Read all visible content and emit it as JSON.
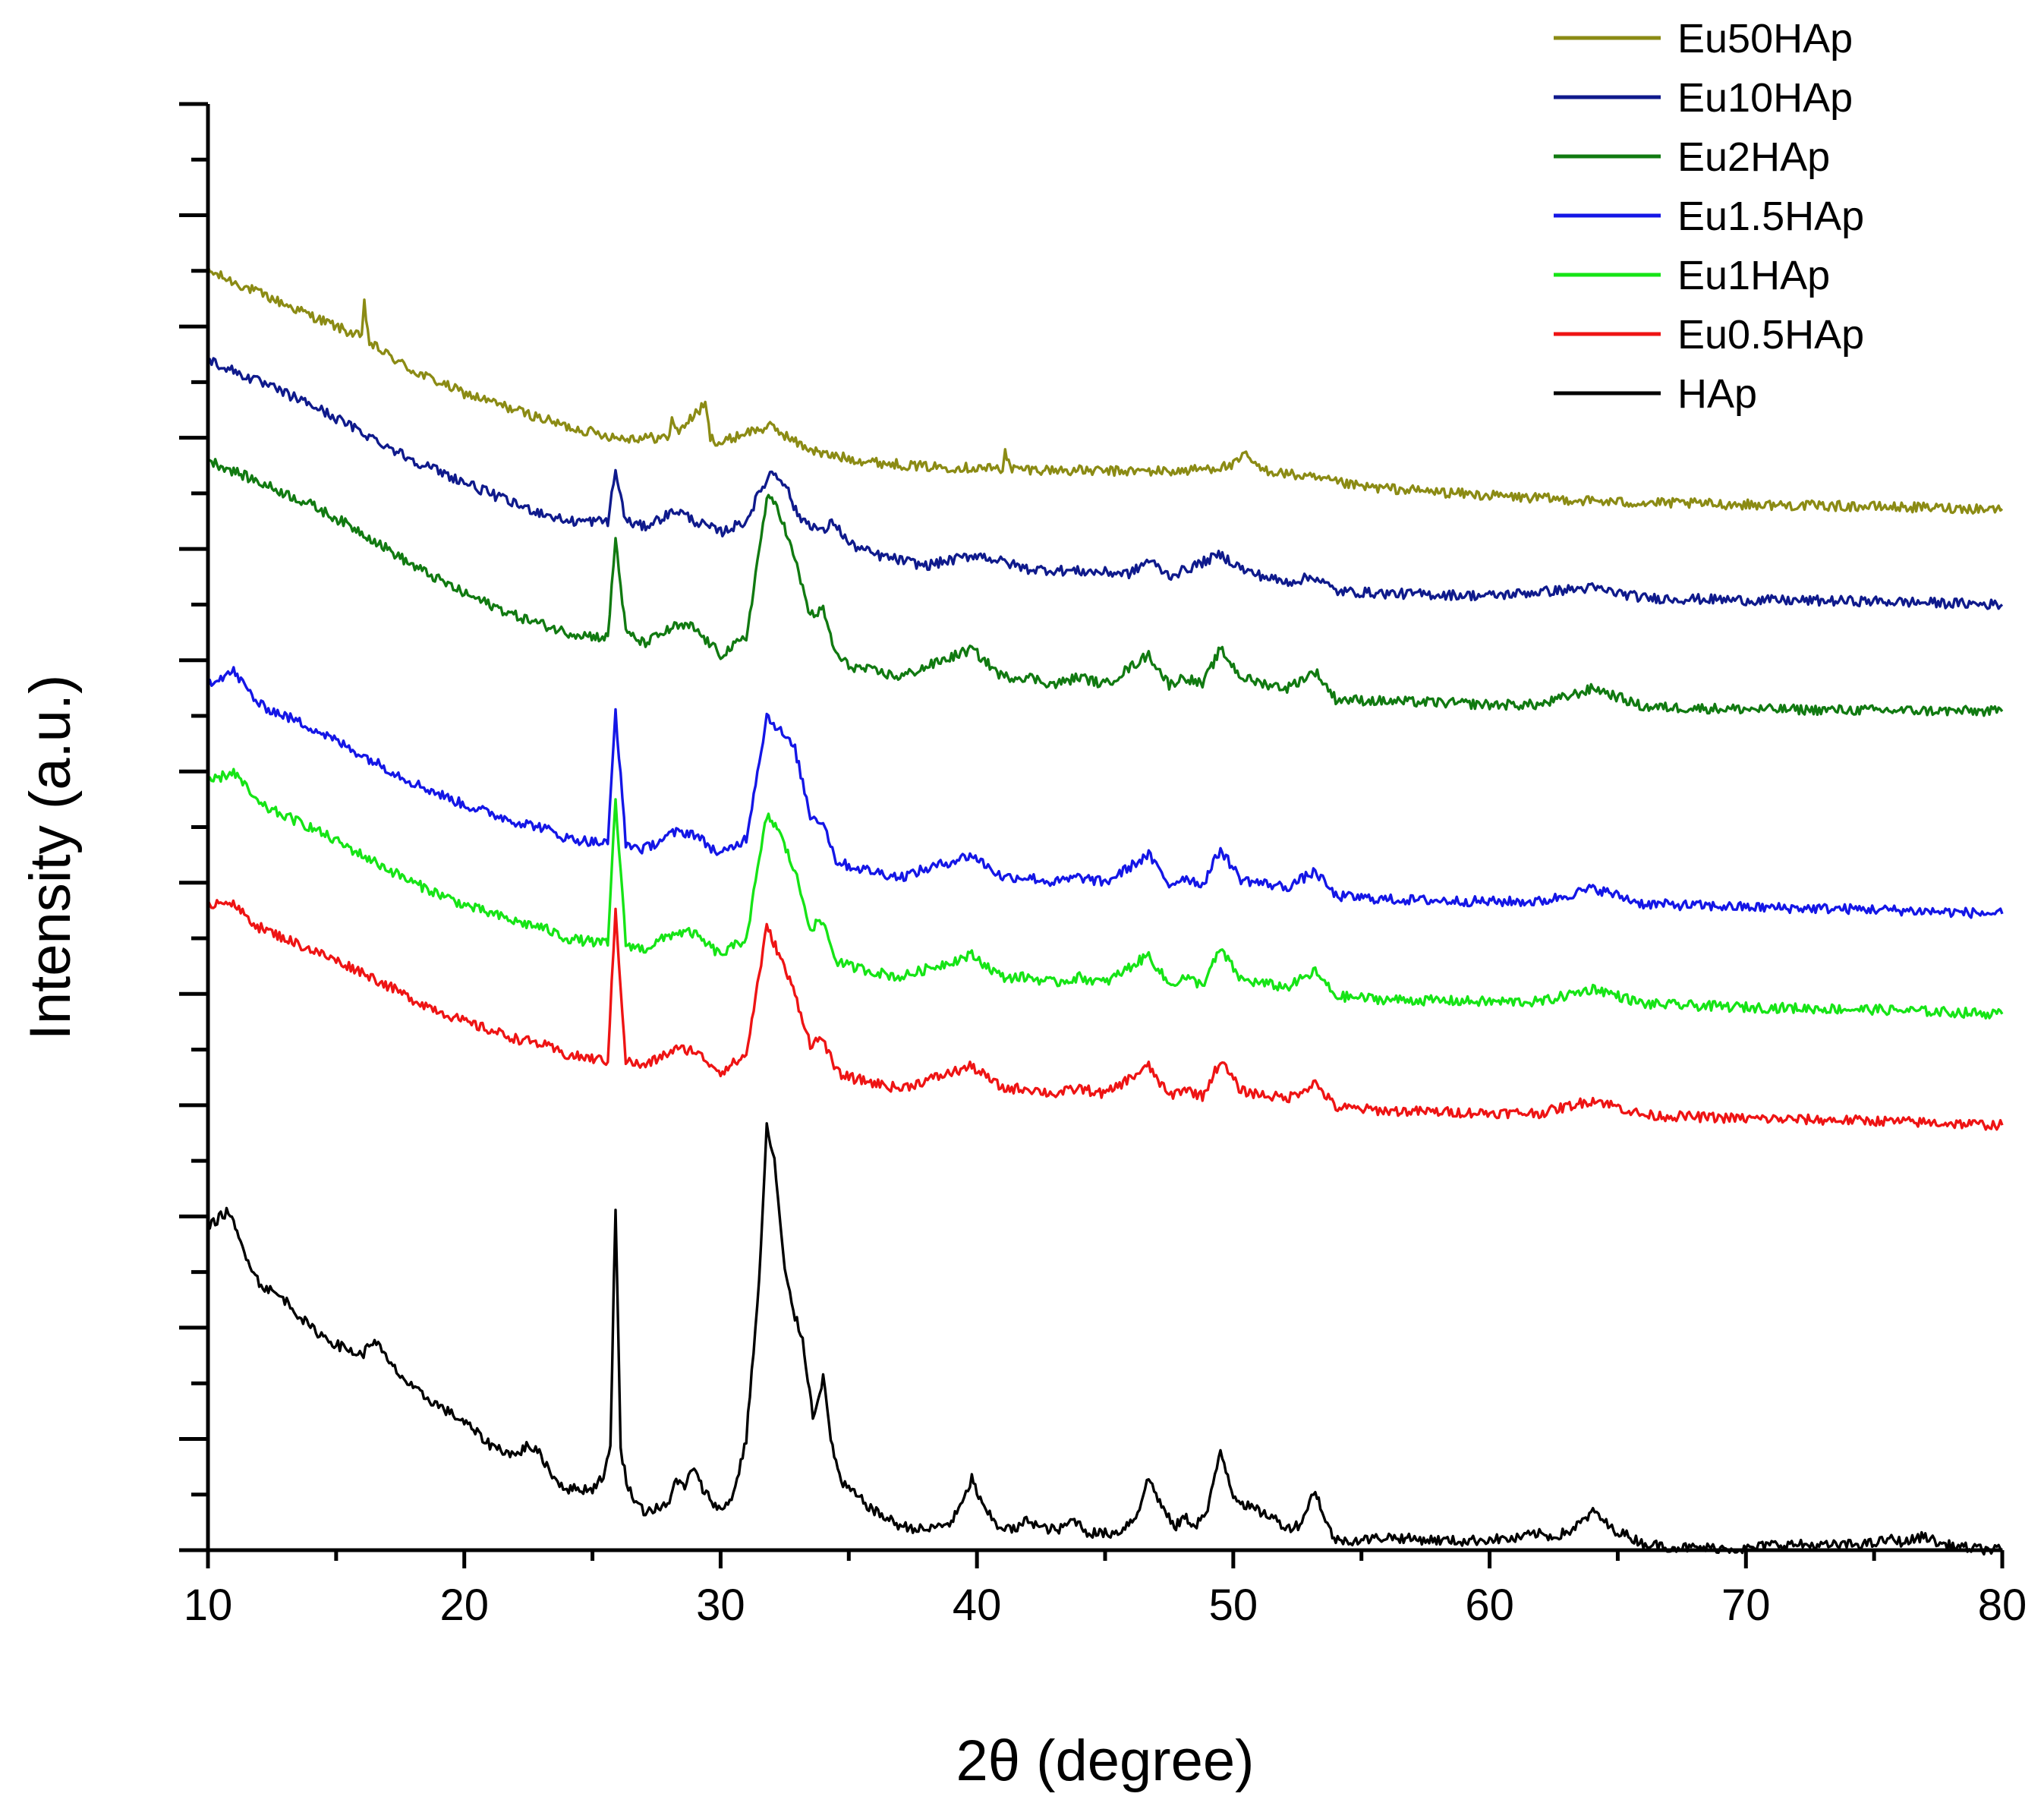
{
  "chart_data": {
    "type": "line",
    "title": "",
    "xlabel": "2θ (degree)",
    "ylabel": "Intensity (a.u.)",
    "xlim": [
      10,
      80
    ],
    "ylim": [
      0,
      130
    ],
    "x_ticks": [
      10,
      20,
      30,
      40,
      50,
      60,
      70,
      80
    ],
    "y_tick_labels_shown": false,
    "grid": false,
    "legend_position": "top-right",
    "peak_positions_2theta": [
      25.9,
      28.1,
      28.9,
      31.8,
      32.2,
      32.9,
      34.0,
      39.8,
      42.0,
      43.8,
      46.7,
      48.1,
      49.5,
      50.5,
      52.1,
      53.2,
      64.1
    ],
    "series": [
      {
        "name": "Eu50HAp",
        "color": "#8b8b14",
        "offset": 112,
        "x": [
          10,
          12,
          14,
          16,
          16.1,
          16.3,
          18,
          20,
          22,
          24,
          26,
          28,
          28.1,
          28.3,
          29.4,
          29.6,
          30,
          31,
          32,
          33,
          34,
          36,
          38,
          40,
          41,
          41.1,
          41.3,
          43,
          45,
          48,
          50,
          50.5,
          51,
          52,
          55,
          60,
          65,
          70,
          75,
          80
        ],
        "y": [
          115,
          113,
          111,
          109,
          112,
          108.5,
          106,
          104,
          102.5,
          101,
          100,
          100,
          102,
          100.5,
          103,
          100,
          99.5,
          100.5,
          101,
          99.5,
          98.5,
          97.8,
          97.4,
          97.3,
          97.2,
          99,
          97.2,
          97.1,
          97.0,
          97.0,
          97.5,
          98.5,
          97.2,
          96.8,
          95.6,
          94.8,
          94.2,
          94.0,
          93.8,
          93.6
        ]
      },
      {
        "name": "Eu10HAp",
        "color": "#0f1a8c",
        "offset": 84,
        "x": [
          10,
          12,
          14,
          16,
          18,
          20,
          22,
          24,
          25.6,
          25.9,
          26.3,
          27,
          28.3,
          29,
          30,
          31,
          31.5,
          32,
          32.5,
          33,
          34,
          34.4,
          35,
          36,
          38,
          40,
          42,
          44,
          46,
          46.7,
          47.5,
          48,
          49.5,
          50.5,
          52,
          53.2,
          54,
          56,
          60,
          64,
          66,
          70,
          75,
          80
        ],
        "y": [
          107,
          105,
          103,
          100.5,
          98,
          96,
          94,
          92.5,
          92.5,
          97,
          92.5,
          92,
          93.5,
          92.5,
          91.5,
          92.5,
          95,
          97,
          96,
          93,
          91.5,
          92.5,
          90.5,
          89.5,
          88.5,
          89.5,
          88.2,
          88,
          87.8,
          89,
          87.6,
          88,
          89.5,
          88,
          87,
          87.5,
          86.2,
          86,
          85.8,
          86.5,
          85.6,
          85.4,
          85.3,
          85
        ]
      },
      {
        "name": "Eu2HAp",
        "color": "#117a11",
        "offset": 64,
        "x": [
          10,
          12,
          14,
          16,
          18,
          20,
          22,
          24,
          25.6,
          25.9,
          26.3,
          27,
          28.2,
          28.9,
          30,
          31,
          31.8,
          32.2,
          32.9,
          33.5,
          34,
          34.5,
          35,
          37,
          39.8,
          41,
          42,
          43,
          44,
          45,
          46.7,
          47.5,
          48.1,
          48.8,
          49.5,
          50.3,
          51,
          52.1,
          53.2,
          54,
          56,
          58,
          60,
          62,
          64.1,
          66,
          70,
          75,
          80
        ],
        "y": [
          98,
          96,
          94,
          91.5,
          88.5,
          86,
          84,
          82.5,
          82,
          91,
          82.5,
          81.5,
          83,
          83,
          80.5,
          82,
          94.5,
          94,
          89,
          84,
          84.5,
          80.5,
          79.5,
          78.5,
          81,
          78.5,
          78.5,
          77.8,
          78.5,
          77.8,
          80.5,
          77.8,
          78.5,
          77.8,
          81,
          78.5,
          78,
          77.5,
          79,
          76.5,
          76.3,
          76.2,
          76,
          76,
          77.5,
          75.8,
          75.6,
          75.5,
          75.4
        ]
      },
      {
        "name": "Eu1.5HAp",
        "color": "#1416e6",
        "offset": 46,
        "x": [
          10,
          11,
          12,
          14,
          16,
          18,
          20,
          22,
          23,
          24,
          25.6,
          25.9,
          26.3,
          27,
          28.2,
          28.9,
          30,
          31,
          31.8,
          32.2,
          32.9,
          33.5,
          34,
          34.5,
          35,
          37,
          39.8,
          41,
          42,
          43,
          44,
          45,
          46.7,
          47.5,
          48.1,
          48.8,
          49.5,
          50.3,
          51,
          52.1,
          53.2,
          54,
          56,
          58,
          60,
          62,
          64.1,
          66,
          70,
          75,
          80
        ],
        "y": [
          78,
          79,
          76,
          74,
          71.5,
          69,
          67,
          65.5,
          65,
          64,
          63.5,
          75.5,
          63.5,
          63,
          64.5,
          64.5,
          62.5,
          64,
          75,
          74,
          72,
          66,
          65.5,
          62,
          61.5,
          60.5,
          62.5,
          60.5,
          60.5,
          60,
          60.5,
          60,
          62.5,
          59.8,
          60.5,
          59.8,
          63,
          60.3,
          60,
          59.6,
          61,
          58.8,
          58.5,
          58.4,
          58.3,
          58.3,
          59.5,
          58.1,
          57.8,
          57.6,
          57.2
        ]
      },
      {
        "name": "Eu1HAp",
        "color": "#16e416",
        "offset": 28,
        "x": [
          10,
          11,
          12,
          14,
          16,
          18,
          20,
          22,
          23,
          24,
          25.6,
          25.9,
          26.3,
          27,
          28.2,
          28.9,
          30,
          31,
          31.8,
          32.2,
          32.9,
          33.5,
          34,
          34.5,
          35,
          37,
          39.8,
          41,
          42,
          43,
          44,
          45,
          46.7,
          47.5,
          48.1,
          48.8,
          49.5,
          50.3,
          51,
          52.1,
          53.2,
          54,
          56,
          58,
          60,
          62,
          64.1,
          66,
          70,
          75,
          80
        ],
        "y": [
          69,
          70,
          67,
          65,
          62.5,
          60,
          58,
          56.5,
          56,
          55,
          54.5,
          67.5,
          54.5,
          54,
          55.5,
          55.5,
          53.5,
          55,
          66,
          65,
          61,
          56,
          56.5,
          53,
          52.5,
          51.5,
          53.5,
          51.5,
          51.5,
          51,
          51.5,
          51,
          53.5,
          50.8,
          51.5,
          50.8,
          54,
          51.3,
          51,
          50.6,
          52,
          49.8,
          49.5,
          49.4,
          49.3,
          49.3,
          50.5,
          49.1,
          48.8,
          48.6,
          48.2
        ]
      },
      {
        "name": "Eu0.5HAp",
        "color": "#ee1414",
        "offset": 10,
        "x": [
          10,
          10.7,
          12,
          14,
          16,
          18,
          20,
          22,
          23,
          24,
          25.6,
          25.9,
          26.3,
          27,
          28.2,
          28.9,
          30,
          31,
          31.8,
          32.2,
          32.9,
          33.5,
          34,
          34.5,
          35,
          37,
          39.8,
          41,
          42,
          43,
          44,
          45,
          46.7,
          47.5,
          48.1,
          48.8,
          49.5,
          50.3,
          51,
          52.1,
          53.2,
          54,
          56,
          58,
          60,
          62,
          64.1,
          66,
          70,
          75,
          80
        ],
        "y": [
          58,
          58.5,
          56,
          54,
          52,
          49.5,
          47.5,
          46,
          45.5,
          44.5,
          44,
          57.5,
          44,
          43.5,
          45,
          45,
          43,
          44.5,
          56,
          54,
          50,
          45.5,
          46,
          43,
          42.5,
          41.5,
          43.5,
          41.5,
          41.5,
          41,
          41.5,
          41,
          43.5,
          40.8,
          41.5,
          40.8,
          44,
          41.3,
          41,
          40.6,
          42,
          39.8,
          39.5,
          39.4,
          39.3,
          39.3,
          40.5,
          39.1,
          38.8,
          38.6,
          38.2
        ]
      },
      {
        "name": "HAp",
        "color": "#000000",
        "offset": 0,
        "x": [
          10,
          10.5,
          10.8,
          11.2,
          12,
          13,
          14,
          15,
          16,
          16.5,
          17,
          18,
          19,
          20,
          21,
          22,
          22.5,
          23,
          23.5,
          24,
          25,
          25.5,
          25.7,
          25.9,
          26.1,
          26.4,
          27,
          28,
          28.2,
          28.6,
          28.9,
          29.3,
          30,
          30.5,
          31,
          31.5,
          31.8,
          32.1,
          32.5,
          32.9,
          33.2,
          33.6,
          34,
          34.3,
          34.7,
          35,
          35.5,
          36,
          37,
          38,
          39,
          39.5,
          39.8,
          40.2,
          40.8,
          41.5,
          42,
          42.5,
          43.2,
          43.8,
          44.3,
          45,
          45.5,
          46.2,
          46.7,
          47.2,
          47.7,
          48.1,
          48.5,
          49,
          49.5,
          50,
          50.5,
          51,
          51.5,
          52.1,
          52.6,
          53.2,
          53.6,
          54,
          55,
          56,
          57,
          58,
          59,
          60,
          61,
          61.8,
          62.5,
          63.2,
          64.1,
          64.7,
          65.2,
          66,
          67,
          68,
          69,
          70,
          71,
          72,
          73,
          74,
          75,
          75.6,
          76.2,
          77,
          77.5,
          78,
          79,
          80
        ],
        "y": [
          29,
          30,
          30.5,
          28,
          24,
          22.5,
          20,
          18.5,
          17.5,
          19,
          17,
          14.5,
          13,
          11.5,
          9.5,
          8.5,
          9.5,
          8.5,
          6.5,
          5.5,
          5.5,
          7,
          9.5,
          31,
          9,
          5.5,
          3.5,
          4,
          6.5,
          5.5,
          7.5,
          5.5,
          3.5,
          5,
          10,
          24,
          38,
          35,
          25,
          21,
          19,
          12,
          15.5,
          10,
          6,
          5.5,
          4.5,
          3.5,
          2.2,
          1.8,
          2.5,
          4.5,
          6.5,
          4,
          2.2,
          1.8,
          2.8,
          2,
          1.8,
          2.8,
          1.6,
          1.5,
          1.6,
          3,
          6.5,
          4,
          2,
          3,
          2.2,
          3.5,
          9,
          5,
          4,
          3.5,
          3,
          2,
          2.3,
          5.5,
          2.5,
          0.9,
          0.9,
          1.2,
          1,
          0.9,
          0.8,
          1,
          1,
          1.5,
          1.2,
          1.8,
          3.5,
          2,
          1.5,
          0.6,
          0.3,
          0.2,
          0.2,
          0.1,
          0.5,
          0.5,
          0.4,
          0.5,
          0.6,
          1,
          0.7,
          1.3,
          0.6,
          0.4,
          0.1,
          0
        ]
      }
    ]
  }
}
